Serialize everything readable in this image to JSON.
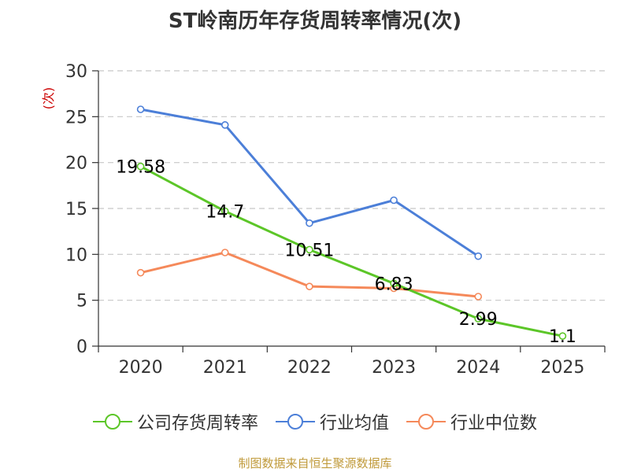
{
  "chart_data": {
    "type": "line",
    "title": "ST岭南历年存货周转率情况(次)",
    "ylabel": "(次)",
    "xlabel": "",
    "ylim": [
      0,
      30
    ],
    "yticks": [
      0,
      5,
      10,
      15,
      20,
      25,
      30
    ],
    "categories": [
      "2020",
      "2021",
      "2022",
      "2023",
      "2024",
      "2025"
    ],
    "series": [
      {
        "name": "公司存货周转率",
        "color": "#5cc628",
        "values": [
          19.58,
          14.7,
          10.51,
          6.83,
          2.99,
          1.1
        ],
        "labels": [
          "19.58",
          "14.7",
          "10.51",
          "6.83",
          "2.99",
          "1.1"
        ]
      },
      {
        "name": "行业均值",
        "color": "#4c7fd8",
        "values": [
          25.8,
          24.1,
          13.4,
          15.9,
          9.8,
          null
        ]
      },
      {
        "name": "行业中位数",
        "color": "#f5895a",
        "values": [
          8.0,
          10.2,
          6.5,
          6.3,
          5.4,
          null
        ]
      }
    ],
    "grid": true,
    "legend_position": "bottom"
  },
  "source": "制图数据来自恒生聚源数据库"
}
